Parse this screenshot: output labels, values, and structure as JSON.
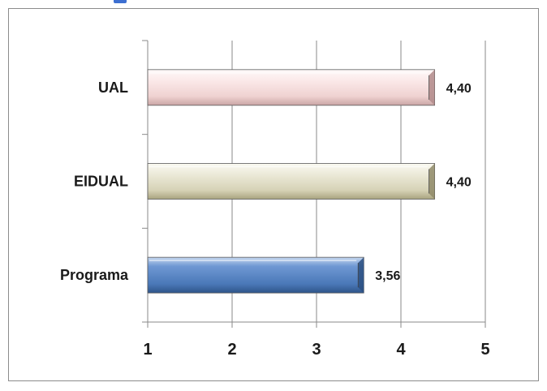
{
  "chart_data": {
    "type": "bar",
    "orientation": "horizontal",
    "title": "",
    "xlabel": "",
    "ylabel": "",
    "categories": [
      "Programa",
      "EIDUAL",
      "UAL"
    ],
    "values": [
      3.56,
      4.4,
      4.4
    ],
    "value_labels": [
      "3,56",
      "4,40",
      "4,40"
    ],
    "xlim": [
      1,
      5
    ],
    "xticks": [
      "1",
      "2",
      "3",
      "4",
      "5"
    ],
    "grid": true,
    "legend": "none",
    "colors": {
      "Programa": "#4f81bd",
      "EIDUAL": "#ddd9c3",
      "UAL": "#f2dcdb"
    }
  }
}
